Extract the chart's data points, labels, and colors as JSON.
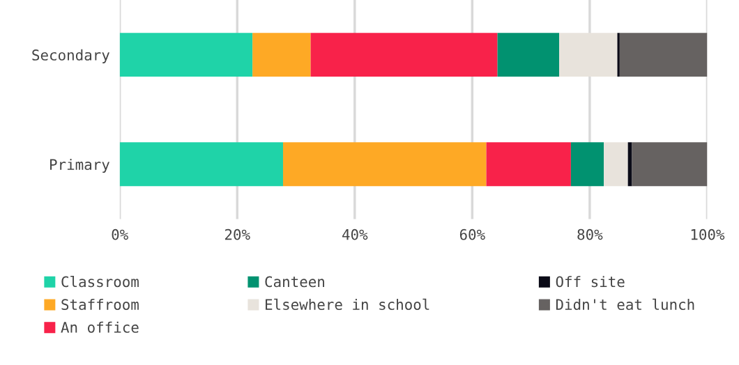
{
  "chart_data": {
    "type": "bar",
    "orientation": "horizontal",
    "stacked": true,
    "categories": [
      "Secondary",
      "Primary"
    ],
    "series": [
      {
        "name": "Classroom",
        "color": "#1fd3a8",
        "values": [
          22.6,
          27.8
        ]
      },
      {
        "name": "Staffroom",
        "color": "#fea925",
        "values": [
          9.9,
          34.6
        ]
      },
      {
        "name": "An office",
        "color": "#f8224a",
        "values": [
          31.8,
          14.4
        ]
      },
      {
        "name": "Canteen",
        "color": "#019270",
        "values": [
          10.5,
          5.6
        ]
      },
      {
        "name": "Elsewhere in school",
        "color": "#e8e3dc",
        "values": [
          9.9,
          4.1
        ]
      },
      {
        "name": "Off site",
        "color": "#0b0b17",
        "values": [
          0.4,
          0.7
        ]
      },
      {
        "name": "Didn't eat lunch",
        "color": "#666261",
        "values": [
          14.9,
          12.8
        ]
      }
    ],
    "xlim": [
      0,
      100
    ],
    "xticks": [
      {
        "value": 0,
        "label": "0%"
      },
      {
        "value": 20,
        "label": "20%"
      },
      {
        "value": 40,
        "label": "40%"
      },
      {
        "value": 60,
        "label": "60%"
      },
      {
        "value": 80,
        "label": "80%"
      },
      {
        "value": 100,
        "label": "100%"
      }
    ],
    "grid": "x",
    "legend": "bottom"
  }
}
